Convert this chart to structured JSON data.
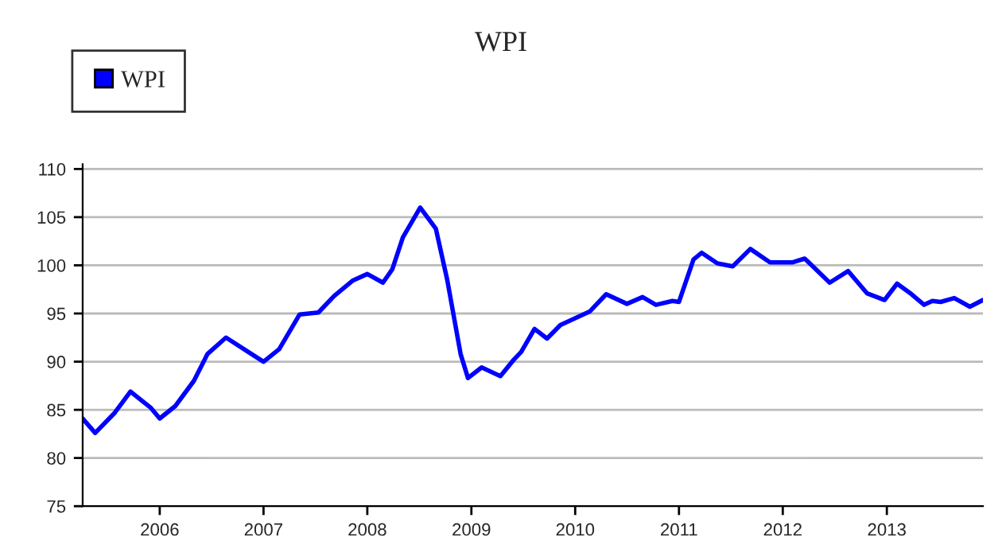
{
  "chart_data": {
    "type": "line",
    "title": "WPI",
    "x": [
      "2005-04-05",
      "2005-05-19",
      "2005-07-27",
      "2005-09-20",
      "2005-12-01",
      "2006-01-01",
      "2006-02-25",
      "2006-05-01",
      "2006-06-18",
      "2006-08-22",
      "2006-11-14",
      "2007-01-01",
      "2007-02-25",
      "2007-05-08",
      "2007-07-13",
      "2007-09-06",
      "2007-11-10",
      "2008-01-01",
      "2008-02-25",
      "2008-03-29",
      "2008-05-05",
      "2008-07-05",
      "2008-08-29",
      "2008-10-08",
      "2008-11-24",
      "2008-12-20",
      "2009-02-06",
      "2009-04-13",
      "2009-05-30",
      "2009-06-25",
      "2009-08-11",
      "2009-09-24",
      "2009-11-10",
      "2010-02-21",
      "2010-04-20",
      "2010-07-02",
      "2010-08-26",
      "2010-10-12",
      "2010-12-09",
      "2011-01-01",
      "2011-02-21",
      "2011-03-22",
      "2011-05-16",
      "2011-07-09",
      "2011-09-09",
      "2011-11-17",
      "2012-02-03",
      "2012-03-18",
      "2012-06-14",
      "2012-08-18",
      "2012-10-23",
      "2012-12-24",
      "2013-02-06",
      "2013-03-29",
      "2013-05-12",
      "2013-06-10",
      "2013-07-09",
      "2013-08-26",
      "2013-10-20",
      "2013-12-05"
    ],
    "series": [
      {
        "name": "WPI",
        "color": "#0000ff",
        "values": [
          84.1,
          82.6,
          84.7,
          86.9,
          85.2,
          84.1,
          85.4,
          88.0,
          90.8,
          92.5,
          90.9,
          90.0,
          91.3,
          94.9,
          95.1,
          96.8,
          98.4,
          99.1,
          98.2,
          99.6,
          102.9,
          106.0,
          103.8,
          98.5,
          90.8,
          88.3,
          89.4,
          88.5,
          90.2,
          91.0,
          93.4,
          92.4,
          93.8,
          95.2,
          97.0,
          96.0,
          96.7,
          95.9,
          96.3,
          96.2,
          100.6,
          101.3,
          100.2,
          99.9,
          101.7,
          100.3,
          100.3,
          100.7,
          98.2,
          99.4,
          97.1,
          96.4,
          98.1,
          97.0,
          95.9,
          96.3,
          96.2,
          96.6,
          95.7,
          96.4
        ]
      }
    ],
    "xlim": [
      "2005-04-05",
      "2013-12-05"
    ],
    "xticks": [
      {
        "value": "2006-01-01",
        "label": "2006"
      },
      {
        "value": "2007-01-01",
        "label": "2007"
      },
      {
        "value": "2008-01-01",
        "label": "2008"
      },
      {
        "value": "2009-01-01",
        "label": "2009"
      },
      {
        "value": "2010-01-01",
        "label": "2010"
      },
      {
        "value": "2011-01-01",
        "label": "2011"
      },
      {
        "value": "2012-01-01",
        "label": "2012"
      },
      {
        "value": "2013-01-01",
        "label": "2013"
      }
    ],
    "ylim": [
      75,
      110.5
    ],
    "yticks": [
      75,
      80,
      85,
      90,
      95,
      100,
      105,
      110
    ],
    "grid": "y",
    "legend": "top left",
    "marker": "none",
    "line_style": "solid"
  }
}
